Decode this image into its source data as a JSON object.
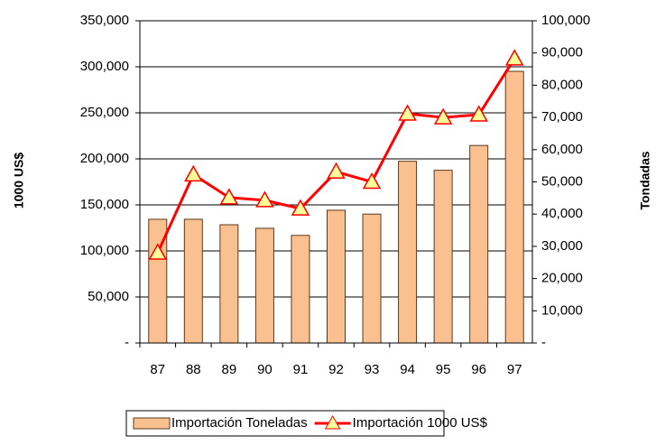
{
  "chart_data": {
    "type": "bar-line",
    "y_label": "1000 US$",
    "y2_label": "Tondadas",
    "categories": [
      "87",
      "88",
      "89",
      "90",
      "91",
      "92",
      "93",
      "94",
      "95",
      "96",
      "97"
    ],
    "series": [
      {
        "name": "Importación Toneladas",
        "type": "bar",
        "axis": "y2",
        "color": "#fac08f",
        "values": [
          38400,
          38400,
          36700,
          35600,
          33400,
          41200,
          40000,
          56400,
          53600,
          61300,
          84300
        ]
      },
      {
        "name": "Importación 1000 US$",
        "type": "line",
        "axis": "y",
        "color": "#ff0000",
        "values": [
          98000,
          183000,
          158000,
          155000,
          146000,
          186000,
          175000,
          249000,
          245000,
          248000,
          309000
        ]
      }
    ],
    "ylim": [
      0,
      350000
    ],
    "yticks": [
      {
        "value": 0,
        "label": "-"
      },
      {
        "value": 50000,
        "label": "50,000"
      },
      {
        "value": 100000,
        "label": "100,000"
      },
      {
        "value": 150000,
        "label": "150,000"
      },
      {
        "value": 200000,
        "label": "200,000"
      },
      {
        "value": 250000,
        "label": "250,000"
      },
      {
        "value": 300000,
        "label": "300,000"
      },
      {
        "value": 350000,
        "label": "350,000"
      }
    ],
    "y2lim": [
      0,
      100000
    ],
    "y2ticks": [
      {
        "value": 0,
        "label": "-"
      },
      {
        "value": 10000,
        "label": "10,000"
      },
      {
        "value": 20000,
        "label": "20,000"
      },
      {
        "value": 30000,
        "label": "30,000"
      },
      {
        "value": 40000,
        "label": "40,000"
      },
      {
        "value": 50000,
        "label": "50,000"
      },
      {
        "value": 60000,
        "label": "60,000"
      },
      {
        "value": 70000,
        "label": "70,000"
      },
      {
        "value": 80000,
        "label": "80,000"
      },
      {
        "value": 90000,
        "label": "90,000"
      },
      {
        "value": 100000,
        "label": "100,000"
      }
    ],
    "grid": true
  }
}
